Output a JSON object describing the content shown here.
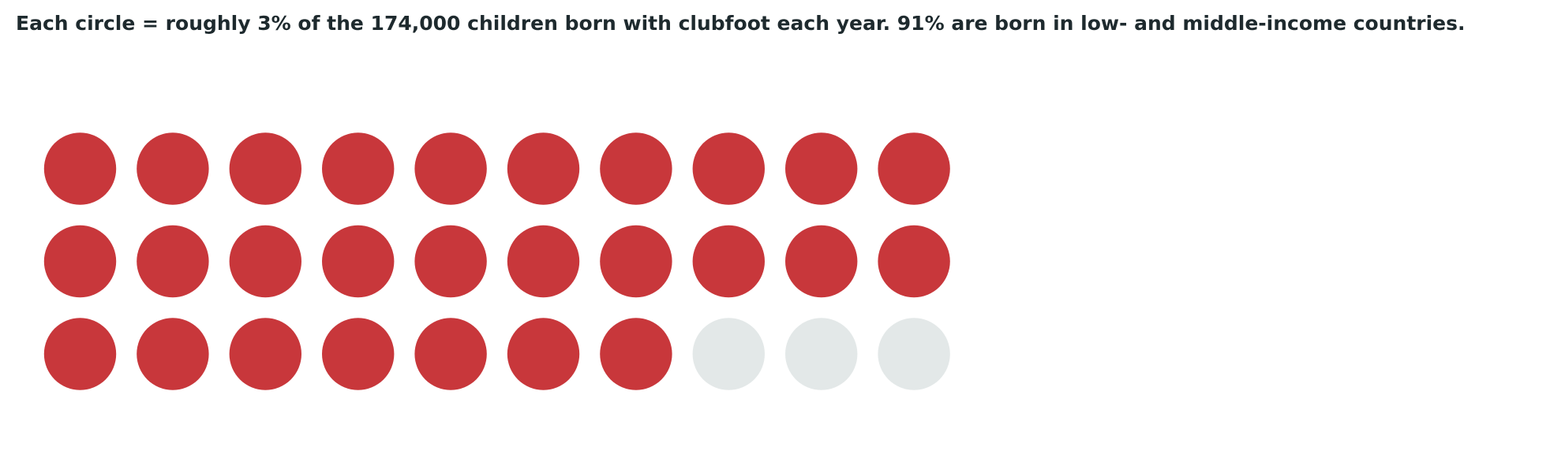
{
  "chart_data": {
    "type": "waffle",
    "title": "Each circle = roughly 3% of the 174,000 children born with clubfoot each year. 91% are born in low- and middle-income countries.",
    "values": [
      27,
      3
    ],
    "colors": [
      "#c8373b",
      "#e3e8e8"
    ]
  }
}
